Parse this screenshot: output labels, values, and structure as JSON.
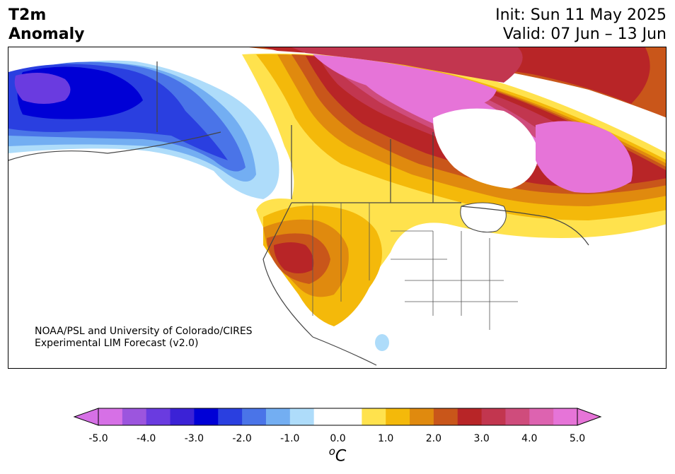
{
  "header": {
    "left_line1": "T2m",
    "left_line2": "Anomaly",
    "right_line1": "Init: Sun 11 May 2025",
    "right_line2": "Valid: 07 Jun – 13 Jun"
  },
  "credit": {
    "line1": "NOAA/PSL and University of Colorado/CIRES",
    "line2": "Experimental LIM Forecast (v2.0)"
  },
  "colorbar": {
    "unit": "oC",
    "tick_labels": [
      "-5.0",
      "-4.0",
      "-3.0",
      "-2.0",
      "-1.0",
      "0.0",
      "1.0",
      "2.0",
      "3.0",
      "4.0",
      "5.0"
    ],
    "colors": [
      "#d670e6",
      "#9c55de",
      "#6a3be0",
      "#3b22d6",
      "#0000d6",
      "#2a3fe0",
      "#4a74e8",
      "#73aef2",
      "#aedcfa",
      "#ffffff",
      "#ffffff",
      "#ffe24d",
      "#f4b90a",
      "#e08a0e",
      "#c9561a",
      "#b82527",
      "#c2364f",
      "#cf4c7c",
      "#dd63b0",
      "#e674d8"
    ],
    "under_color": "#d670e6",
    "over_color": "#e674d8"
  },
  "map": {
    "region": "North America",
    "variable": "2 m temperature anomaly"
  }
}
